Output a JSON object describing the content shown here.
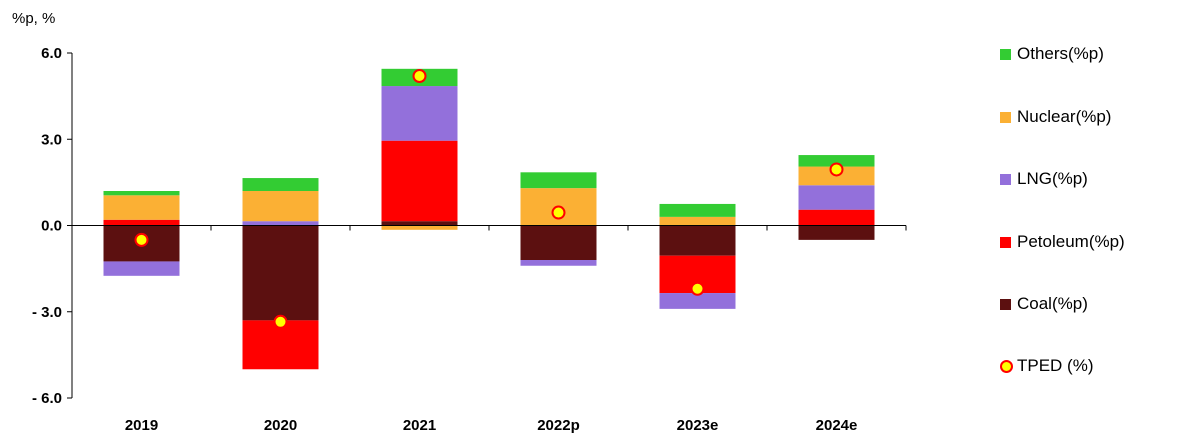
{
  "unit_label": "%p, %",
  "chart_data": {
    "type": "bar",
    "stacked": true,
    "categories": [
      "2019",
      "2020",
      "2021",
      "2022p",
      "2023e",
      "2024e"
    ],
    "ylim": [
      -6.0,
      6.0
    ],
    "yticks": [
      6.0,
      3.0,
      0.0,
      -3.0,
      -6.0
    ],
    "ytick_labels": [
      "6.0",
      "3.0",
      "0.0",
      "- 3.0",
      "- 6.0"
    ],
    "grid": false,
    "legend_position": "right",
    "series": [
      {
        "name": "Coal(%p)",
        "color": "#5c1010",
        "values": [
          -1.25,
          -3.3,
          0.15,
          -1.2,
          -1.05,
          -0.5
        ]
      },
      {
        "name": "Petoleum(%p)",
        "color": "#ff0000",
        "values": [
          0.2,
          -1.7,
          2.8,
          0.0,
          -1.3,
          0.55
        ]
      },
      {
        "name": "LNG(%p)",
        "color": "#9370db",
        "values": [
          -0.5,
          0.15,
          1.9,
          -0.2,
          -0.55,
          0.85
        ]
      },
      {
        "name": "Nuclear(%p)",
        "color": "#fbb034",
        "values": [
          0.85,
          1.05,
          -0.15,
          1.3,
          0.3,
          0.65
        ]
      },
      {
        "name": "Others(%p)",
        "color": "#33cc33",
        "values": [
          0.15,
          0.45,
          0.6,
          0.55,
          0.45,
          0.4
        ]
      }
    ],
    "line_series": {
      "name": "TPED (%)",
      "values": [
        -0.5,
        -3.35,
        5.2,
        0.45,
        -2.2,
        1.95
      ],
      "marker_fill": "#ffff00",
      "marker_stroke": "#ff0000"
    }
  },
  "legend": {
    "items": [
      {
        "label": "Others(%p)",
        "color": "#33cc33",
        "kind": "swatch"
      },
      {
        "label": "Nuclear(%p)",
        "color": "#fbb034",
        "kind": "swatch"
      },
      {
        "label": "LNG(%p)",
        "color": "#9370db",
        "kind": "swatch"
      },
      {
        "label": "Petoleum(%p)",
        "color": "#ff0000",
        "kind": "swatch"
      },
      {
        "label": "Coal(%p)",
        "color": "#5c1010",
        "kind": "swatch"
      },
      {
        "label": "TPED (%)",
        "color": "#ffff00",
        "kind": "marker"
      }
    ]
  }
}
